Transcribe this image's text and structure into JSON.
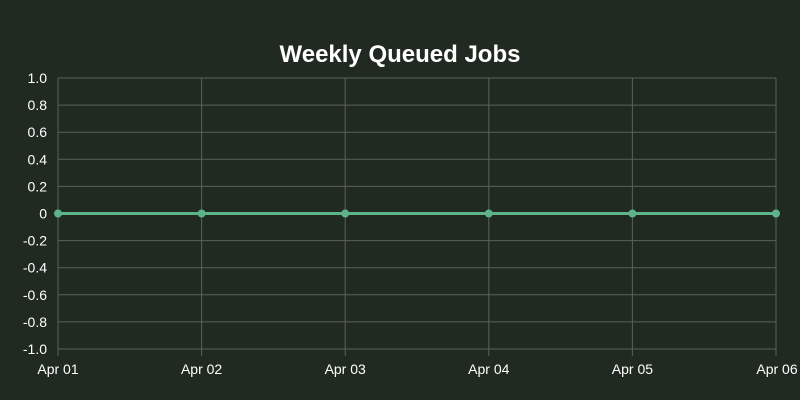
{
  "theme": {
    "background": "#212a21",
    "grid_color": "#596259",
    "text_color": "#ffffff",
    "line_color": "#5db38a",
    "point_color": "#5db38a"
  },
  "chart_data": {
    "type": "line",
    "title": "Weekly Queued Jobs",
    "xlabel": "",
    "ylabel": "",
    "x": [
      "Apr 01",
      "Apr 02",
      "Apr 03",
      "Apr 04",
      "Apr 05",
      "Apr 06"
    ],
    "series": [
      {
        "values": [
          0,
          0,
          0,
          0,
          0,
          0
        ]
      }
    ],
    "ylim": [
      -1.0,
      1.0
    ],
    "y_ticks": [
      "1.0",
      "0.8",
      "0.6",
      "0.4",
      "0.2",
      "0",
      "-0.2",
      "-0.4",
      "-0.6",
      "-0.8",
      "-1.0"
    ],
    "grid": true,
    "legend": "none"
  }
}
